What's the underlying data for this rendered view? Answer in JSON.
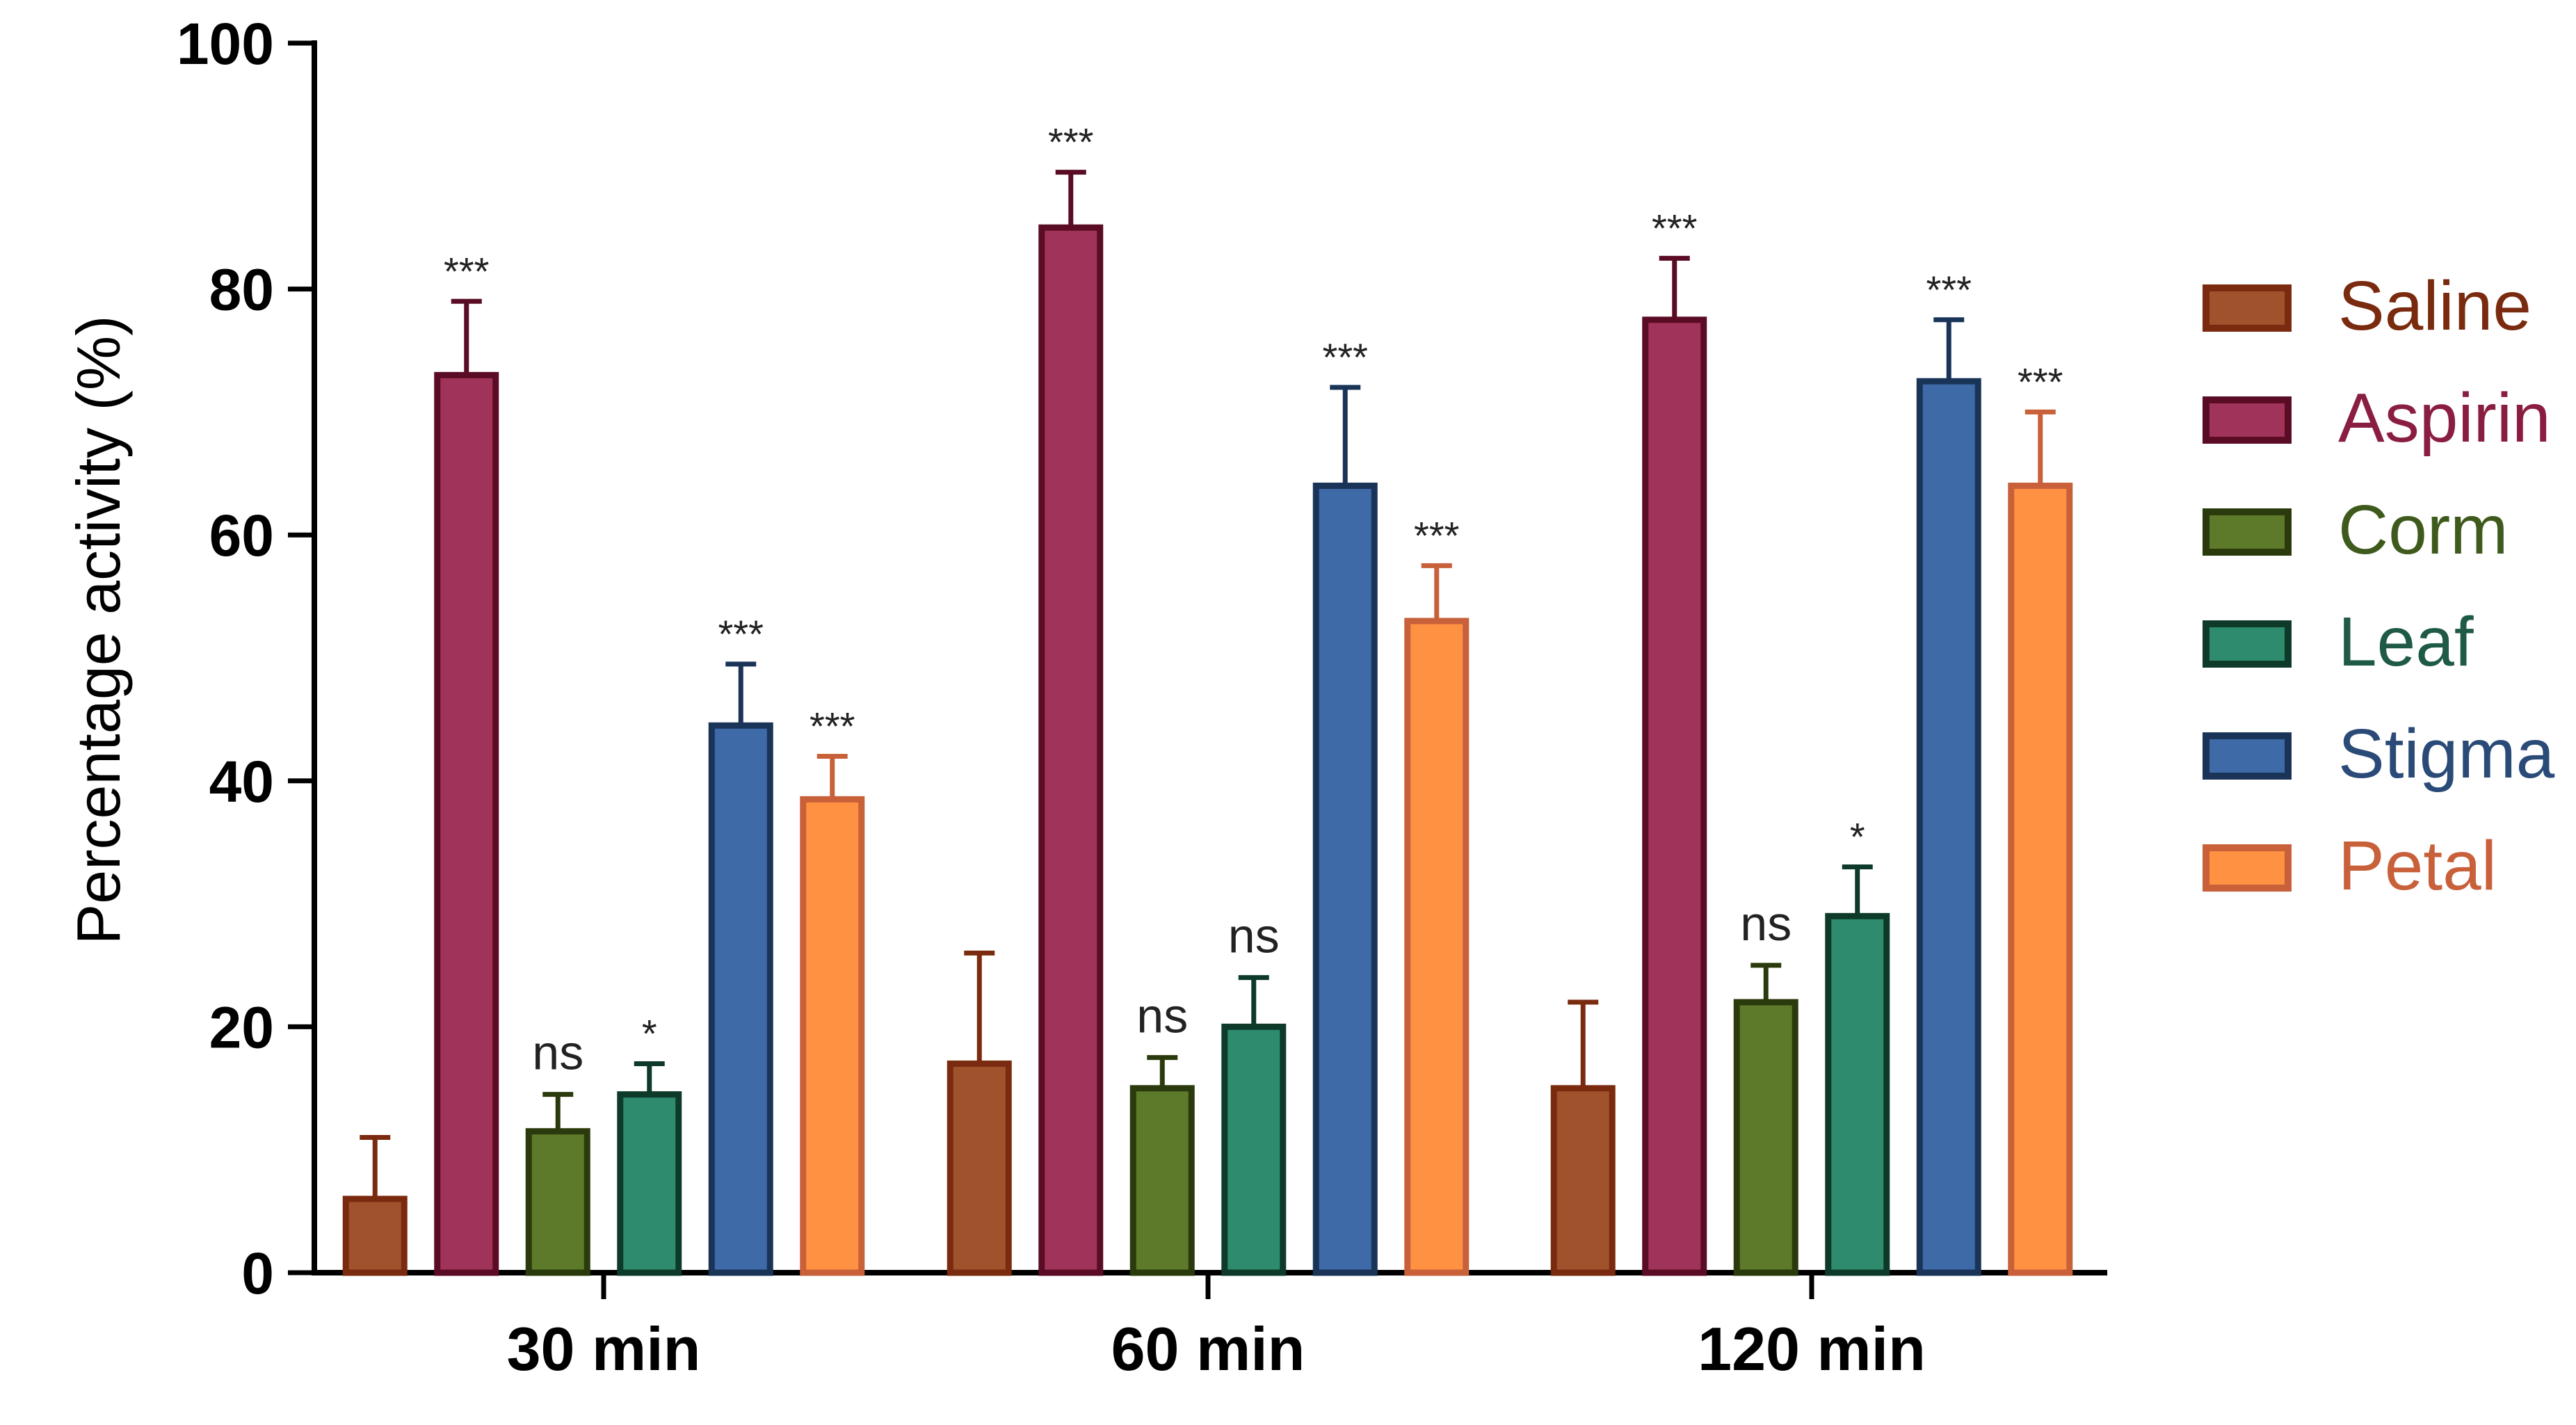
{
  "chart_data": {
    "type": "bar",
    "title": "",
    "xlabel": "",
    "ylabel": "Percentage activity (%)",
    "ylim": [
      0,
      100
    ],
    "yticks": [
      "0",
      "20",
      "40",
      "60",
      "80",
      "100"
    ],
    "grid": false,
    "legend_position": "right",
    "categories": [
      "30 min",
      "60 min",
      "120 min"
    ],
    "series": [
      {
        "name": "Saline",
        "fill": "#A0522D",
        "stroke": "#7A2A0E",
        "text_color": "#7A2A0E",
        "values": [
          6,
          17,
          15
        ],
        "errors": [
          5,
          9,
          7
        ],
        "significance": [
          "",
          "",
          ""
        ]
      },
      {
        "name": "Aspirin",
        "fill": "#A0335A",
        "stroke": "#5A0C24",
        "text_color": "#8A1E40",
        "values": [
          73,
          85,
          77.5
        ],
        "errors": [
          6,
          4.5,
          5
        ],
        "significance": [
          "***",
          "***",
          "***"
        ]
      },
      {
        "name": "Corm",
        "fill": "#5C7A2A",
        "stroke": "#2A3A0C",
        "text_color": "#3E5A1C",
        "values": [
          11.5,
          15,
          22
        ],
        "errors": [
          3,
          2.5,
          3
        ],
        "significance": [
          "ns",
          "ns",
          "ns"
        ]
      },
      {
        "name": "Leaf",
        "fill": "#2E8B6E",
        "stroke": "#0E3A2A",
        "text_color": "#1E5A46",
        "values": [
          14.5,
          20,
          29
        ],
        "errors": [
          2.5,
          4,
          4
        ],
        "significance": [
          "*",
          "ns",
          "*"
        ]
      },
      {
        "name": "Stigma",
        "fill": "#3E6AA8",
        "stroke": "#1A3458",
        "text_color": "#2A4A78",
        "values": [
          44.5,
          64,
          72.5
        ],
        "errors": [
          5,
          8,
          5
        ],
        "significance": [
          "***",
          "***",
          "***"
        ]
      },
      {
        "name": "Petal",
        "fill": "#FF9142",
        "stroke": "#C8603A",
        "text_color": "#C8603A",
        "values": [
          38.5,
          53,
          64
        ],
        "errors": [
          3.5,
          4.5,
          6
        ],
        "significance": [
          "***",
          "***",
          "***"
        ]
      }
    ]
  }
}
